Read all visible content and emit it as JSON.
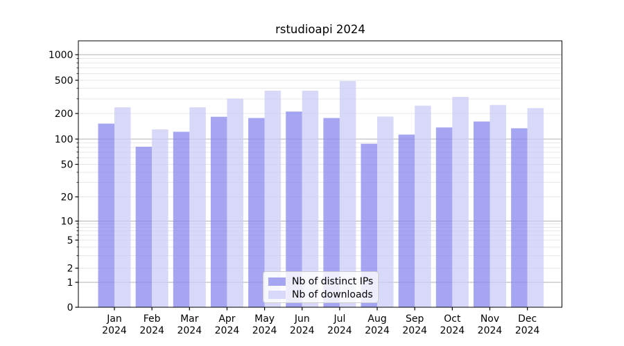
{
  "chart_data": {
    "type": "bar",
    "title": "rstudioapi 2024",
    "categories": [
      "Jan 2024",
      "Feb 2024",
      "Mar 2024",
      "Apr 2024",
      "May 2024",
      "Jun 2024",
      "Jul 2024",
      "Aug 2024",
      "Sep 2024",
      "Oct 2024",
      "Nov 2024",
      "Dec 2024"
    ],
    "series": [
      {
        "name": "Nb of distinct IPs",
        "color": "#A5A5F2",
        "values": [
          152,
          81,
          122,
          183,
          177,
          211,
          177,
          88,
          113,
          137,
          161,
          134
        ]
      },
      {
        "name": "Nb of downloads",
        "color": "#D8D8F8",
        "values": [
          237,
          130,
          237,
          302,
          375,
          375,
          490,
          184,
          248,
          316,
          253,
          232
        ]
      }
    ],
    "xlabel": "",
    "ylabel": "",
    "y_ticks": [
      0,
      1,
      2,
      5,
      10,
      20,
      50,
      100,
      200,
      500,
      1000
    ],
    "y_scale": "pseudo-log",
    "ylim": [
      0,
      1500
    ],
    "grid": true,
    "legend_position": "lower center",
    "colors": {
      "background": "#ffffff",
      "axis": "#000000",
      "grid_major": "#b2b2b2",
      "grid_minor": "#e7e7e7",
      "tick_label": "#000000"
    }
  }
}
